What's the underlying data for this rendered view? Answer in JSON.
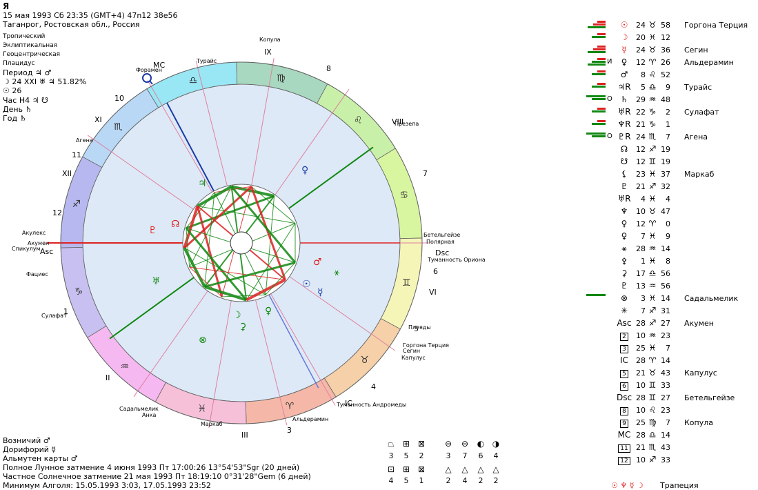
{
  "header": {
    "title": "Я",
    "line1": "15 мая 1993  Сб  23:35 (GMT+4) 47n12  38e56",
    "line2": "Таганрог, Ростовская обл., Россия",
    "settings": [
      "Тропический",
      "Эклиптикальная",
      "Геоцентрическая",
      "Плацидус"
    ],
    "period": "Период ♃ ♂",
    "moon_line": "☽  24 XXI ♅ ♃ 51.82%",
    "sun_line": "☉  26",
    "hour": "Час Н4 ♃ ☋",
    "day": "День ♄",
    "year": "Год ♄"
  },
  "wheel": {
    "signs": [
      {
        "glyph": "♎",
        "color": "#99e6f5"
      },
      {
        "glyph": "♍",
        "color": "#a8d8c0"
      },
      {
        "glyph": "♌",
        "color": "#c9f0a8"
      },
      {
        "glyph": "♋",
        "color": "#d8f5a0"
      },
      {
        "glyph": "♊",
        "color": "#f5f5b8"
      },
      {
        "glyph": "♉",
        "color": "#f5d0a8"
      },
      {
        "glyph": "♈",
        "color": "#f5b8a8"
      },
      {
        "glyph": "♓",
        "color": "#f5c0d8"
      },
      {
        "glyph": "♒",
        "color": "#f5b8f0"
      },
      {
        "glyph": "♑",
        "color": "#c8c0f0"
      },
      {
        "glyph": "♐",
        "color": "#b8b8f0"
      },
      {
        "glyph": "♏",
        "color": "#b8d8f5"
      }
    ],
    "cusp_labels": [
      "IX",
      "8",
      "VIII",
      "7",
      "Dsc",
      "6",
      "VI",
      "5",
      "4",
      "IC",
      "3",
      "III",
      "II",
      "1",
      "Asc",
      "12",
      "XII",
      "11",
      "XI",
      "10",
      "MC"
    ],
    "fixed_stars": [
      "Копула",
      "Турайс",
      "Форамен",
      "Агена",
      "Акулекс",
      "Акумен",
      "Спикулум",
      "Фациес",
      "Сулафат",
      "Садальмелик",
      "Анка",
      "Маркаб",
      "Альдерамин",
      "Туманность Андромеды",
      "Капулус",
      "Сегин",
      "Горгона Терция",
      "Плеяды",
      "Туманность Ориона",
      "Полярная",
      "Бетельгейзе",
      "Презепа"
    ]
  },
  "planet_table": [
    {
      "code": "",
      "glyph": "☉",
      "deg": "24",
      "sign": "♉",
      "min": "58",
      "star": "Горгона Терция",
      "bars": [
        "red",
        "red",
        "green"
      ]
    },
    {
      "code": "",
      "glyph": "☽",
      "deg": "20",
      "sign": "♓",
      "min": "12",
      "star": "",
      "bars": [
        "red",
        "green"
      ]
    },
    {
      "code": "",
      "glyph": "☿",
      "deg": "24",
      "sign": "♉",
      "min": "36",
      "star": "Сегин",
      "bars": [
        "red",
        "red",
        "green"
      ]
    },
    {
      "code": "И",
      "glyph": "♀",
      "deg": "12",
      "sign": "♈",
      "min": "26",
      "star": "Альдерамин",
      "bars": [
        "red",
        "green",
        "green"
      ]
    },
    {
      "code": "",
      "glyph": "♂",
      "deg": "8",
      "sign": "♌",
      "min": "52",
      "star": "",
      "bars": [
        "red",
        "green"
      ]
    },
    {
      "code": "",
      "glyph": "♃R",
      "deg": "5",
      "sign": "♎",
      "min": "9",
      "star": "Турайс",
      "bars": [
        "red",
        "green"
      ]
    },
    {
      "code": "О",
      "glyph": "♄",
      "deg": "29",
      "sign": "♒",
      "min": "48",
      "star": "",
      "bars": [
        "green",
        "green"
      ]
    },
    {
      "code": "",
      "glyph": "♅R",
      "deg": "22",
      "sign": "♑",
      "min": "2",
      "star": "Сулафат",
      "bars": [
        "red",
        "green"
      ]
    },
    {
      "code": "",
      "glyph": "♆R",
      "deg": "21",
      "sign": "♑",
      "min": "1",
      "star": "",
      "bars": [
        "red",
        "green"
      ]
    },
    {
      "code": "О",
      "glyph": "♇R",
      "deg": "24",
      "sign": "♏",
      "min": "7",
      "star": "Агена",
      "bars": [
        "green",
        "green"
      ]
    },
    {
      "code": "",
      "glyph": "☊",
      "deg": "12",
      "sign": "♐",
      "min": "19",
      "star": "",
      "bars": []
    },
    {
      "code": "",
      "glyph": "☋",
      "deg": "12",
      "sign": "♊",
      "min": "19",
      "star": "",
      "bars": []
    },
    {
      "code": "",
      "glyph": "⚸",
      "deg": "23",
      "sign": "♓",
      "min": "37",
      "star": "Маркаб",
      "bars": []
    },
    {
      "code": "",
      "glyph": "♇",
      "deg": "21",
      "sign": "♐",
      "min": "32",
      "star": "",
      "bars": []
    },
    {
      "code": "",
      "glyph": "♅R",
      "deg": "4",
      "sign": "♓",
      "min": "4",
      "star": "",
      "bars": []
    },
    {
      "code": "",
      "glyph": "♆",
      "deg": "10",
      "sign": "♉",
      "min": "47",
      "star": "",
      "bars": []
    },
    {
      "code": "",
      "glyph": "♀",
      "deg": "12",
      "sign": "♈",
      "min": "0",
      "star": "",
      "bars": []
    },
    {
      "code": "",
      "glyph": "♀",
      "deg": "7",
      "sign": "♓",
      "min": "9",
      "star": "",
      "bars": []
    },
    {
      "code": "",
      "glyph": "⚹",
      "deg": "28",
      "sign": "♒",
      "min": "14",
      "star": "",
      "bars": []
    },
    {
      "code": "",
      "glyph": "⚴",
      "deg": "1",
      "sign": "♓",
      "min": "8",
      "star": "",
      "bars": []
    },
    {
      "code": "",
      "glyph": "⚳",
      "deg": "17",
      "sign": "♎",
      "min": "56",
      "star": "",
      "bars": []
    },
    {
      "code": "",
      "glyph": "♇",
      "deg": "13",
      "sign": "♒",
      "min": "56",
      "star": "",
      "bars": []
    },
    {
      "code": "",
      "glyph": "⊗",
      "deg": "3",
      "sign": "♓",
      "min": "14",
      "star": "Садальмелик",
      "bars": [
        "green"
      ]
    },
    {
      "code": "",
      "glyph": "✳",
      "deg": "7",
      "sign": "♐",
      "min": "31",
      "star": "",
      "bars": []
    },
    {
      "code": "",
      "glyph": "Asc",
      "deg": "28",
      "sign": "♐",
      "min": "27",
      "star": "Акумен",
      "bars": []
    },
    {
      "code": "",
      "glyph": "2",
      "deg": "10",
      "sign": "♒",
      "min": "23",
      "star": "",
      "bars": [],
      "box": true
    },
    {
      "code": "",
      "glyph": "3",
      "deg": "25",
      "sign": "♓",
      "min": "7",
      "star": "",
      "bars": [],
      "box": true
    },
    {
      "code": "",
      "glyph": "IC",
      "deg": "28",
      "sign": "♈",
      "min": "14",
      "star": "",
      "bars": []
    },
    {
      "code": "",
      "glyph": "5",
      "deg": "21",
      "sign": "♉",
      "min": "43",
      "star": "Капулус",
      "bars": [],
      "box": true
    },
    {
      "code": "",
      "glyph": "6",
      "deg": "10",
      "sign": "♊",
      "min": "33",
      "star": "",
      "bars": [],
      "box": true
    },
    {
      "code": "",
      "glyph": "Dsc",
      "deg": "28",
      "sign": "♊",
      "min": "27",
      "star": "Бетельгейзе",
      "bars": []
    },
    {
      "code": "",
      "glyph": "8",
      "deg": "10",
      "sign": "♌",
      "min": "23",
      "star": "",
      "bars": [],
      "box": true
    },
    {
      "code": "",
      "glyph": "9",
      "deg": "25",
      "sign": "♍",
      "min": "7",
      "star": "Копула",
      "bars": [],
      "box": true
    },
    {
      "code": "",
      "glyph": "MC",
      "deg": "28",
      "sign": "♎",
      "min": "14",
      "star": "",
      "bars": []
    },
    {
      "code": "",
      "glyph": "11",
      "deg": "21",
      "sign": "♏",
      "min": "43",
      "star": "",
      "bars": [],
      "box": true
    },
    {
      "code": "",
      "glyph": "12",
      "deg": "10",
      "sign": "♐",
      "min": "33",
      "star": "",
      "bars": [],
      "box": true
    }
  ],
  "footer": {
    "charioteer": "Возничий ♂",
    "doryphory": "Дорифорий ☿",
    "almuten": "Альмутен карты ♂",
    "eclipse1": "Полное Лунное затмение 4 июня 1993 Пт 17:00:26 13°54'53\"Sgr (20 дней)",
    "eclipse2": "Частное Солнечное затмение 21 мая 1993 Пт 18:19:10  0°31'28\"Gem (6 дней)",
    "algol": "Минимум Алголя: 15.05.1993  3:03,  17.05.1993 23:52",
    "trapezium_label": "Трапеция",
    "trapezium_glyphs": "☉ ♆ ☿ ☽"
  },
  "aspect_counts": {
    "row1_symbols": [
      "⏢",
      "⊞",
      "⊠",
      "⊖",
      "⊖",
      "◐",
      "◑"
    ],
    "row1_counts": [
      "3",
      "5",
      "2",
      "3",
      "7",
      "6",
      "4"
    ],
    "row2_symbols": [
      "⊡",
      "⊞",
      "⊠",
      "△",
      "△",
      "△",
      "△"
    ],
    "row2_counts": [
      "4",
      "5",
      "1",
      "2",
      "4",
      "2",
      "2"
    ]
  },
  "colors": {
    "red": "#dd2222",
    "green": "#118811",
    "blue": "#1a3aa8"
  }
}
